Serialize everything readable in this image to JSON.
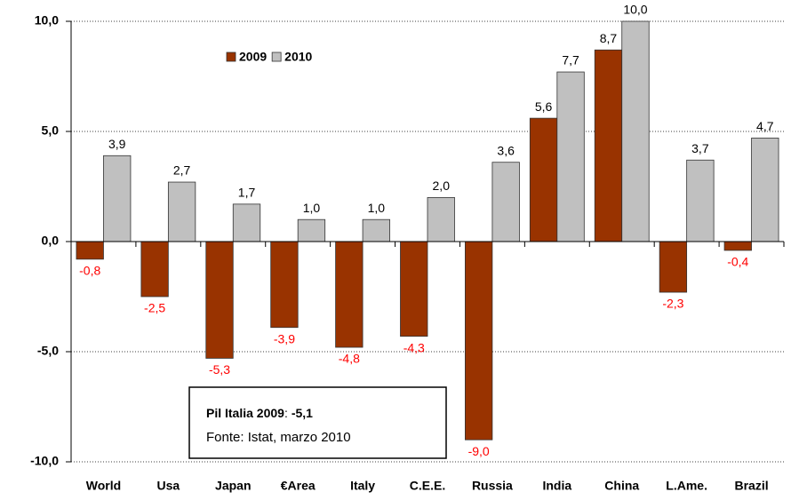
{
  "chart_data": {
    "type": "bar",
    "categories": [
      "World",
      "Usa",
      "Japan",
      "€Area",
      "Italy",
      "C.E.E.",
      "Russia",
      "India",
      "China",
      "L.Ame.",
      "Brazil"
    ],
    "series": [
      {
        "name": "2009",
        "color": "#993300",
        "values": [
          -0.8,
          -2.5,
          -5.3,
          -3.9,
          -4.8,
          -4.3,
          -9.0,
          5.6,
          8.7,
          -2.3,
          -0.4
        ],
        "value_labels": [
          "-0,8",
          "-2,5",
          "-5,3",
          "-3,9",
          "-4,8",
          "-4,3",
          "-9,0",
          "5,6",
          "8,7",
          "-2,3",
          "-0,4"
        ]
      },
      {
        "name": "2010",
        "color": "#c0c0c0",
        "values": [
          3.9,
          2.7,
          1.7,
          1.0,
          1.0,
          2.0,
          3.6,
          7.7,
          10.0,
          3.7,
          4.7
        ],
        "value_labels": [
          "3,9",
          "2,7",
          "1,7",
          "1,0",
          "1,0",
          "2,0",
          "3,6",
          "7,7",
          "10,0",
          "3,7",
          "4,7"
        ]
      }
    ],
    "ylim": [
      -10,
      10
    ],
    "yticks": [
      {
        "value": -10,
        "label": "-10,0"
      },
      {
        "value": -5,
        "label": "-5,0"
      },
      {
        "value": 0,
        "label": "0,0"
      },
      {
        "value": 5,
        "label": "5,0"
      },
      {
        "value": 10,
        "label": "10,0"
      }
    ],
    "grid": true,
    "negative_label_color": "#ff0000",
    "legend": "top-left",
    "annotation": {
      "title": "Pil Italia 2009",
      "separator": ":",
      "value": "-5,1",
      "source": "Fonte: Istat, marzo 2010"
    }
  }
}
